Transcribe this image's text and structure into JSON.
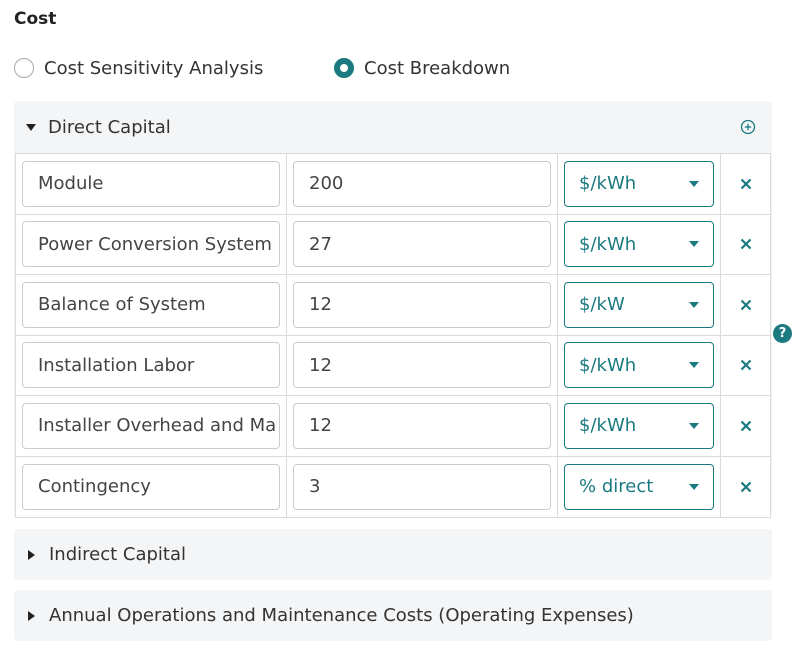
{
  "section_title": "Cost",
  "radio": {
    "options": [
      {
        "label": "Cost Sensitivity Analysis",
        "checked": false
      },
      {
        "label": "Cost Breakdown",
        "checked": true
      }
    ]
  },
  "direct_capital": {
    "label": "Direct Capital",
    "expanded": true,
    "add_icon": "plus-circle-icon",
    "rows": [
      {
        "name": "Module",
        "value": "200",
        "unit": "$/kWh"
      },
      {
        "name": "Power Conversion System",
        "value": "27",
        "unit": "$/kWh"
      },
      {
        "name": "Balance of System",
        "value": "12",
        "unit": "$/kW"
      },
      {
        "name": "Installation Labor",
        "value": "12",
        "unit": "$/kWh"
      },
      {
        "name": "Installer Overhead and Ma",
        "value": "12",
        "unit": "$/kWh"
      },
      {
        "name": "Contingency",
        "value": "3",
        "unit": "% direct"
      }
    ]
  },
  "indirect_capital": {
    "label": "Indirect Capital",
    "expanded": false
  },
  "annual_om": {
    "label": "Annual Operations and Maintenance Costs (Operating Expenses)",
    "expanded": false
  },
  "help_icon": "?",
  "colors": {
    "accent": "#1a7a80",
    "panel_bg": "#f4f5f6",
    "border": "#d8dadc"
  }
}
